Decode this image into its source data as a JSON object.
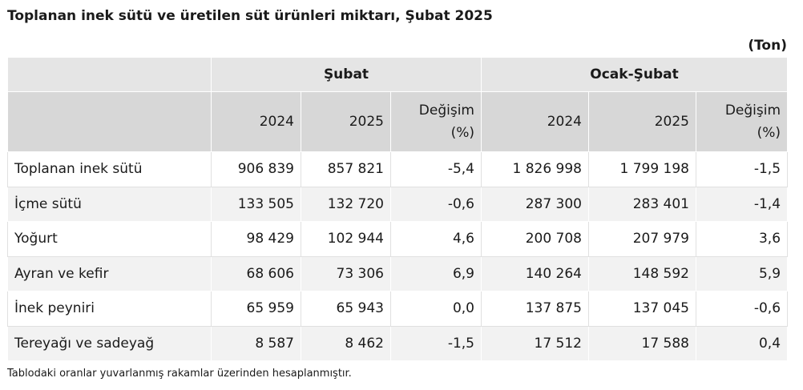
{
  "title": "Toplanan inek sütü ve üretilen süt ürünleri miktarı, Şubat 2025",
  "unit": "(Ton)",
  "table": {
    "group_headers": [
      "Şubat",
      "Ocak-Şubat"
    ],
    "sub_headers": [
      "2024",
      "2025",
      "Değişim\n(%)",
      "2024",
      "2025",
      "Değişim\n(%)"
    ],
    "rows": [
      {
        "label": "Toplanan inek sütü",
        "values": [
          "906 839",
          "857 821",
          "-5,4",
          "1 826 998",
          "1 799 198",
          "-1,5"
        ]
      },
      {
        "label": "İçme sütü",
        "values": [
          "133 505",
          "132 720",
          "-0,6",
          "287 300",
          "283 401",
          "-1,4"
        ]
      },
      {
        "label": "Yoğurt",
        "values": [
          "98 429",
          "102 944",
          "4,6",
          "200 708",
          "207 979",
          "3,6"
        ]
      },
      {
        "label": "Ayran ve kefir",
        "values": [
          "68 606",
          "73 306",
          "6,9",
          "140 264",
          "148 592",
          "5,9"
        ]
      },
      {
        "label": "İnek peyniri",
        "values": [
          "65 959",
          "65 943",
          "0,0",
          "137 875",
          "137 045",
          "-0,6"
        ]
      },
      {
        "label": "Tereyağı ve sadeyağ",
        "values": [
          "8 587",
          "8 462",
          "-1,5",
          "17 512",
          "17 588",
          "0,4"
        ]
      }
    ]
  },
  "note": "Tablodaki oranlar yuvarlanmış rakamlar üzerinden hesaplanmıştır."
}
